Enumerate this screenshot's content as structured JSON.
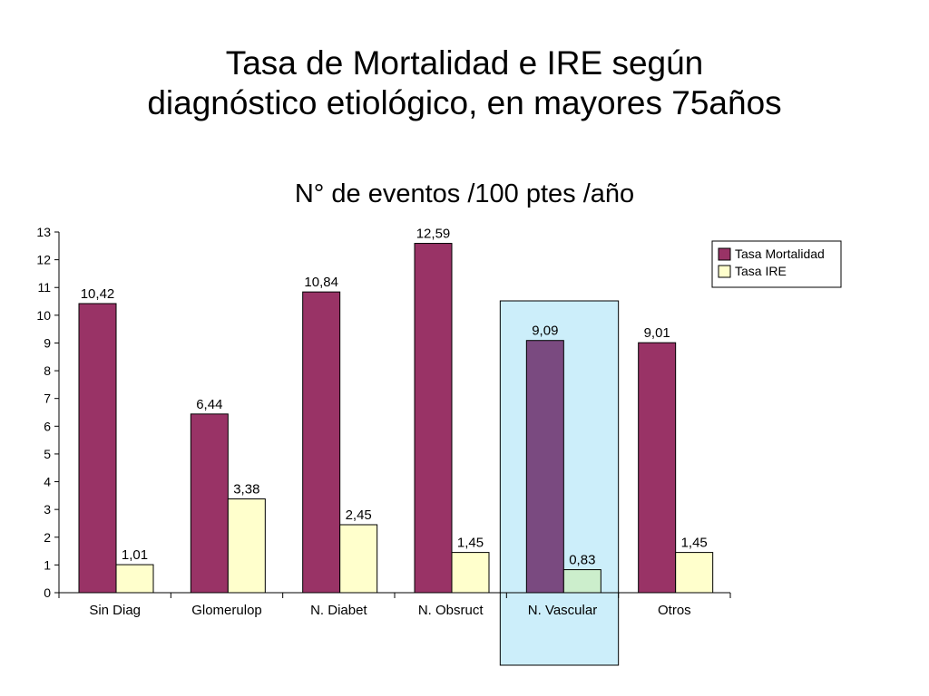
{
  "slide": {
    "title_line1": "Tasa de Mortalidad e IRE según",
    "title_line2": "diagnóstico etiológico, en mayores 75años"
  },
  "chart_data": {
    "type": "bar",
    "title": "N° de eventos /100 ptes /año",
    "categories": [
      "Sin Diag",
      "Glomerulop",
      "N. Diabet",
      "N. Obsruct",
      "N. Vascular",
      "Otros"
    ],
    "series": [
      {
        "name": "Tasa Mortalidad",
        "color": "#993366",
        "values": [
          10.42,
          6.44,
          10.84,
          12.59,
          9.09,
          9.01
        ],
        "labels": [
          "10,42",
          "6,44",
          "10,84",
          "12,59",
          "9,09",
          "9,01"
        ]
      },
      {
        "name": "Tasa IRE",
        "color": "#FFFFCC",
        "values": [
          1.01,
          3.38,
          2.45,
          1.45,
          0.83,
          1.45
        ],
        "labels": [
          "1,01",
          "3,38",
          "2,45",
          "1,45",
          "0,83",
          "1,45"
        ]
      }
    ],
    "ylim": [
      0,
      13
    ],
    "yticks": [
      0,
      1,
      2,
      3,
      4,
      5,
      6,
      7,
      8,
      9,
      10,
      11,
      12,
      13
    ],
    "grid": false,
    "legend_position": "top-right",
    "highlight": {
      "category": "N. Vascular",
      "color": "#CCEEFA"
    }
  }
}
